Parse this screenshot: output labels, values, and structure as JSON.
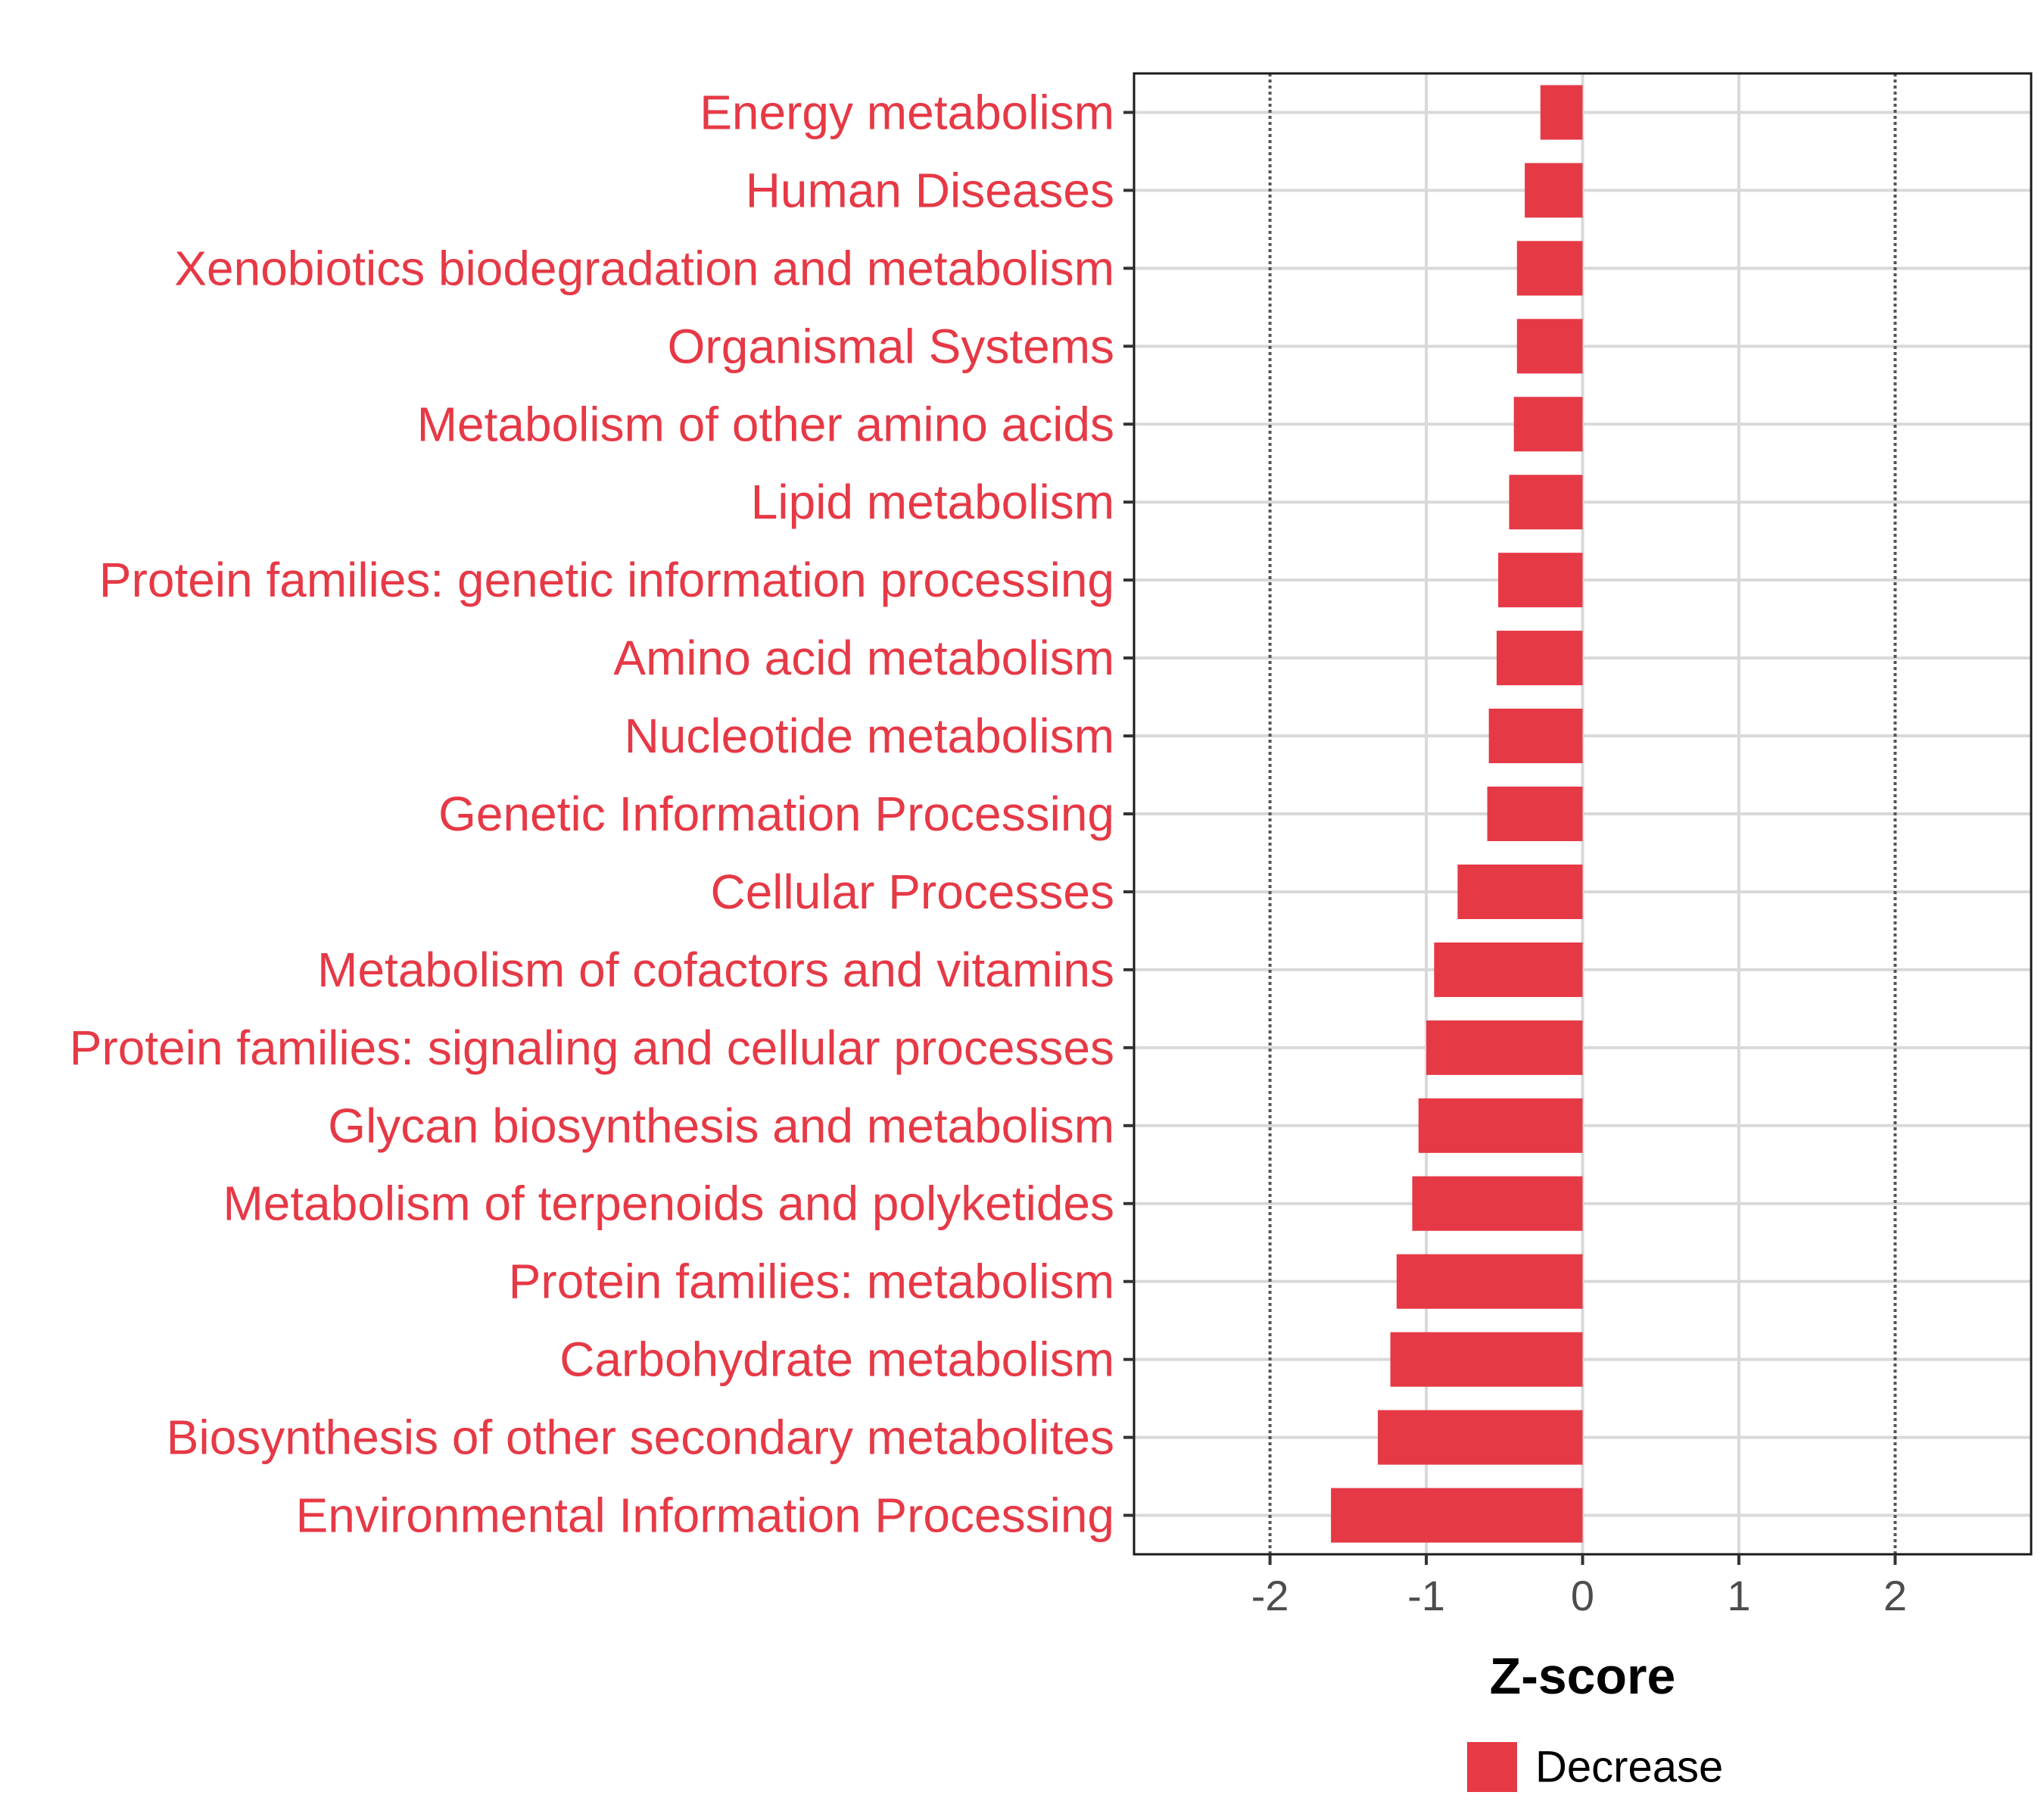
{
  "chart_data": {
    "type": "bar",
    "orientation": "horizontal",
    "categories": [
      "Energy metabolism",
      "Human Diseases",
      "Xenobiotics biodegradation and metabolism",
      "Organismal Systems",
      "Metabolism of other amino acids",
      "Lipid metabolism",
      "Protein families: genetic information processing",
      "Amino acid metabolism",
      "Nucleotide metabolism",
      "Genetic Information Processing",
      "Cellular Processes",
      "Metabolism of cofactors and vitamins",
      "Protein families: signaling and cellular processes",
      "Glycan biosynthesis and metabolism",
      "Metabolism of terpenoids and polyketides",
      "Protein families: metabolism",
      "Carbohydrate metabolism",
      "Biosynthesis of other secondary metabolites",
      "Environmental Information Processing"
    ],
    "series": [
      {
        "name": "Decrease",
        "color": "#e63946",
        "values": [
          -0.27,
          -0.37,
          -0.42,
          -0.42,
          -0.44,
          -0.47,
          -0.54,
          -0.55,
          -0.6,
          -0.61,
          -0.8,
          -0.95,
          -1.0,
          -1.05,
          -1.09,
          -1.19,
          -1.23,
          -1.31,
          -1.61
        ]
      }
    ],
    "xlabel": "Z-score",
    "xlim": [
      -2.87,
      2.87
    ],
    "xticks": [
      "-2",
      "-1",
      "0",
      "1",
      "2"
    ],
    "tick_values": [
      -2,
      -1,
      0,
      1,
      2
    ],
    "threshold_lines": [
      -2,
      2
    ],
    "grid": true,
    "legend": {
      "position": "bottom",
      "entries": [
        "Decrease"
      ]
    },
    "label_color": "#e63946",
    "threshold_line_color": "#555555",
    "grid_color": "#d9d9d9"
  }
}
